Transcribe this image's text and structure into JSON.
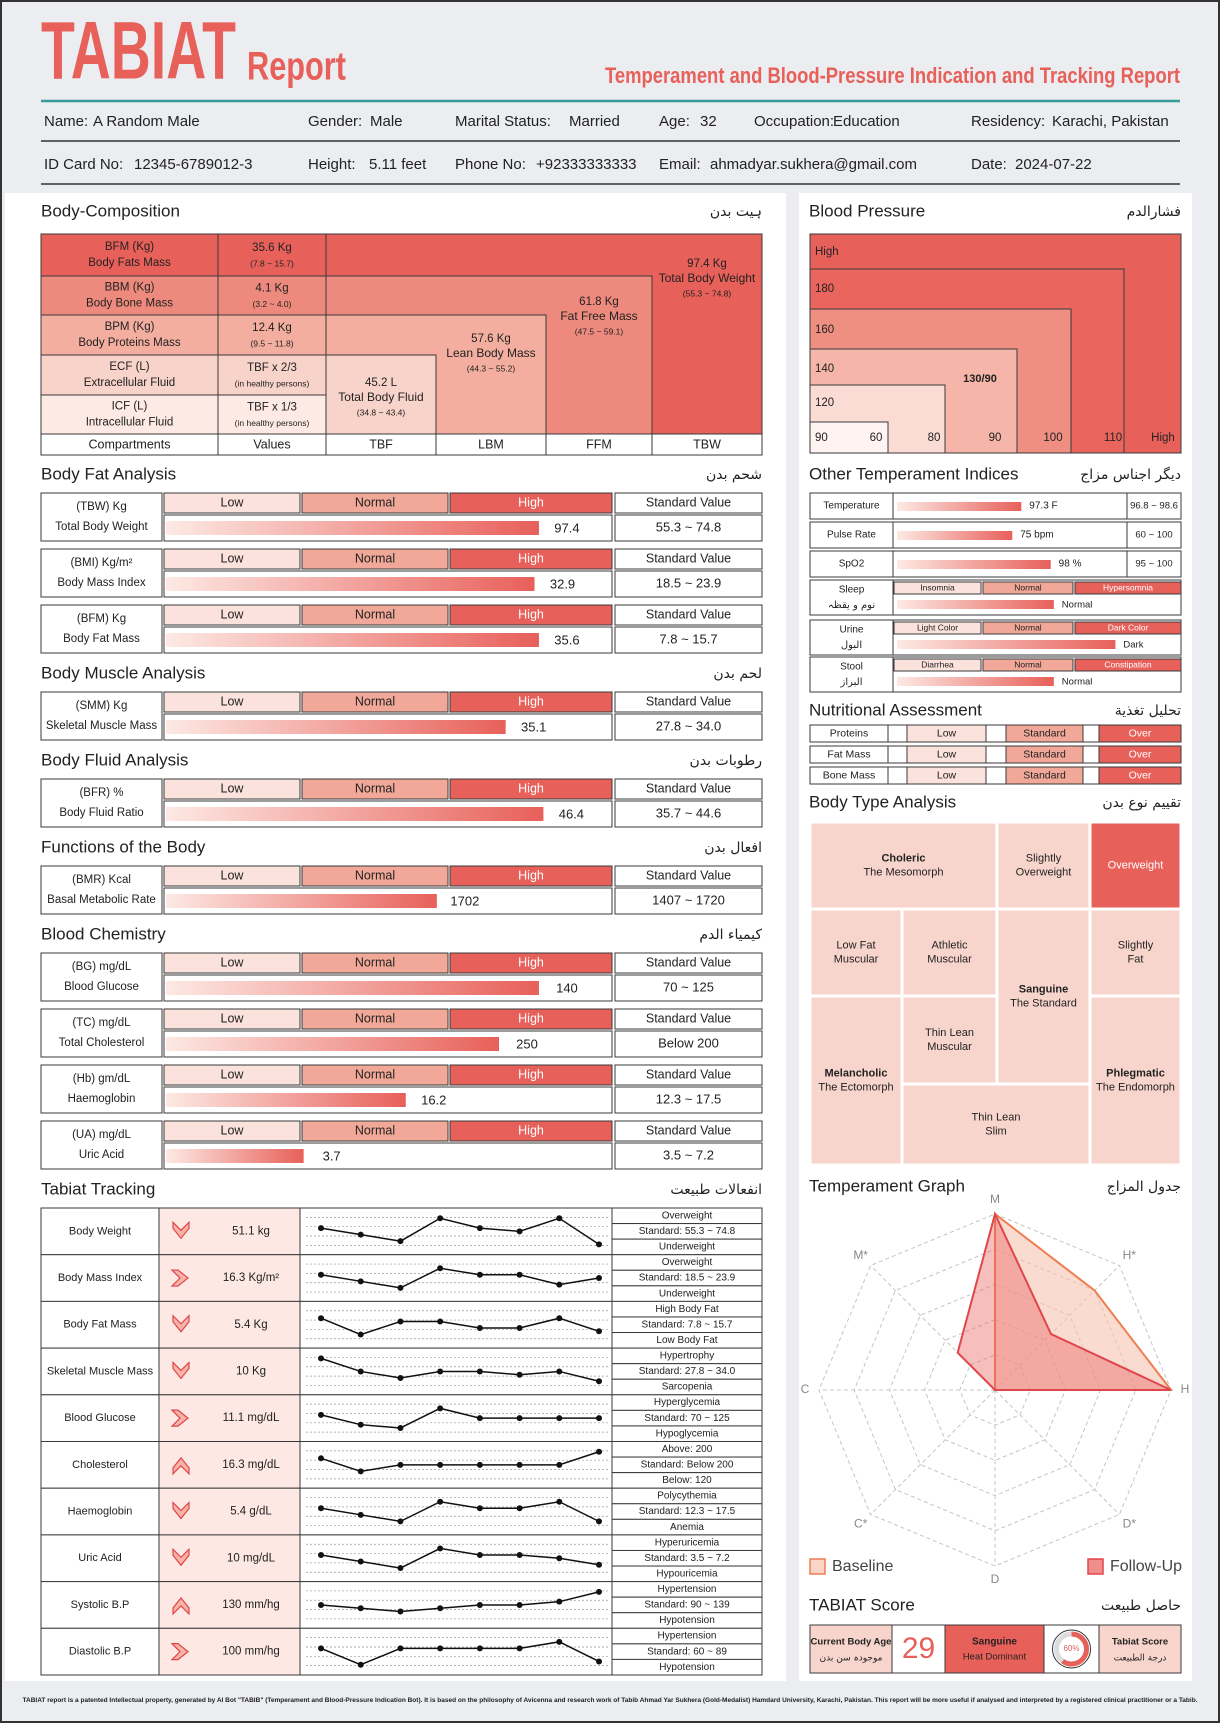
{
  "header": {
    "brand": "TABIAT",
    "report": "Report",
    "subtitle": "Temperament and Blood-Pressure Indication and Tracking Report"
  },
  "patient": [
    [
      {
        "label": "Name:",
        "value": "A Random Male"
      },
      {
        "label": "Gender:",
        "value": "Male"
      },
      {
        "label": "Marital Status:",
        "value": "Married"
      },
      {
        "label": "Age:",
        "value": "32"
      },
      {
        "label": "Occupation:",
        "value": "Education"
      },
      {
        "label": "Residency:",
        "value": "Karachi, Pakistan"
      }
    ],
    [
      {
        "label": "ID Card No:",
        "value": "12345-6789012-3"
      },
      {
        "label": "Height:",
        "value": "5.11 feet"
      },
      {
        "label": "Phone No:",
        "value": "+92333333333"
      },
      {
        "label": "Email:",
        "value": "ahmadyar.sukhera@gmail.com"
      },
      {
        "label": "Date:",
        "value": "2024-07-22"
      }
    ]
  ],
  "body_composition": {
    "title": "Body-Composition",
    "title_urdu": "ہیت بدن",
    "rows": [
      {
        "code": "BFM (Kg)",
        "name": "Body Fats Mass",
        "value": "35.6 Kg",
        "range": "(7.8 ~ 15.7)"
      },
      {
        "code": "BBM (Kg)",
        "name": "Body Bone Mass",
        "value": "4.1 Kg",
        "range": "(3.2 ~ 4.0)"
      },
      {
        "code": "BPM (Kg)",
        "name": "Body Proteins Mass",
        "value": "12.4 Kg",
        "range": "(9.5 ~ 11.8)"
      },
      {
        "code": "ECF (L)",
        "name": "Extracellular Fluid",
        "value": "TBF x 2/3",
        "range": "(in healthy persons)"
      },
      {
        "code": "ICF (L)",
        "name": "Intracellular Fluid",
        "value": "TBF x 1/3",
        "range": "(in healthy persons)"
      }
    ],
    "compartments": [
      {
        "code": "TBF",
        "value": "45.2 L",
        "name": "Total Body Fluid",
        "range": "(34.8 ~ 43.4)"
      },
      {
        "code": "LBM",
        "value": "57.6 Kg",
        "name": "Lean Body Mass",
        "range": "(44.3 ~ 55.2)"
      },
      {
        "code": "FFM",
        "value": "61.8 Kg",
        "name": "Fat Free Mass",
        "range": "(47.5 ~ 59.1)"
      },
      {
        "code": "TBW",
        "value": "97.4 Kg",
        "name": "Total Body Weight",
        "range": "(55.3 ~ 74.8)"
      }
    ],
    "footer": [
      "Compartments",
      "Values"
    ]
  },
  "scale_labels": {
    "low": "Low",
    "normal": "Normal",
    "high": "High",
    "standard": "Standard Value"
  },
  "analyses": [
    {
      "title": "Body Fat Analysis",
      "title_urdu": "شحم بدن",
      "rows": [
        {
          "unit": "(TBW) Kg",
          "name": "Total Body Weight",
          "value": 97.4,
          "standard": "55.3 ~ 74.8"
        },
        {
          "unit": "(BMI) Kg/m²",
          "name": "Body Mass Index",
          "value": 32.9,
          "standard": "18.5 ~ 23.9"
        },
        {
          "unit": "(BFM) Kg",
          "name": "Body Fat Mass",
          "value": 35.6,
          "standard": "7.8 ~ 15.7"
        }
      ]
    },
    {
      "title": "Body Muscle Analysis",
      "title_urdu": "لحم بدن",
      "rows": [
        {
          "unit": "(SMM) Kg",
          "name": "Skeletal Muscle Mass",
          "value": 35.1,
          "standard": "27.8 ~ 34.0"
        }
      ]
    },
    {
      "title": "Body Fluid Analysis",
      "title_urdu": "رطوبات بدن",
      "rows": [
        {
          "unit": "(BFR) %",
          "name": "Body Fluid Ratio",
          "value": 46.4,
          "standard": "35.7 ~ 44.6"
        }
      ]
    },
    {
      "title": "Functions of the Body",
      "title_urdu": "افعال بدن",
      "rows": [
        {
          "unit": "(BMR) Kcal",
          "name": "Basal Metabolic Rate",
          "value": 1702,
          "standard": "1407 ~ 1720"
        }
      ]
    },
    {
      "title": "Blood Chemistry",
      "title_urdu": "كيمياء الدم",
      "rows": [
        {
          "unit": "(BG) mg/dL",
          "name": "Blood Glucose",
          "value": 140,
          "standard": "70 ~ 125"
        },
        {
          "unit": "(TC) mg/dL",
          "name": "Total Cholesterol",
          "value": 250,
          "standard": "Below 200"
        },
        {
          "unit": "(Hb) gm/dL",
          "name": "Haemoglobin",
          "value": 16.2,
          "standard": "12.3 ~ 17.5"
        },
        {
          "unit": "(UA) mg/dL",
          "name": "Uric Acid",
          "value": 3.7,
          "standard": "3.5 ~ 7.2"
        }
      ]
    }
  ],
  "tracking": {
    "title": "Tabiat Tracking",
    "title_urdu": "انفعالات طبیعت",
    "trend_range": [
      0,
      10
    ],
    "rows": [
      {
        "name": "Body Weight",
        "arrow": "down",
        "value": "51.1 kg",
        "trend": [
          6,
          4,
          2,
          9,
          6,
          5,
          9,
          1
        ],
        "status": [
          "Overweight",
          "Standard: 55.3 ~ 74.8",
          "Underweight"
        ]
      },
      {
        "name": "Body Mass Index",
        "arrow": "right",
        "value": "16.3 Kg/m²",
        "trend": [
          6,
          4,
          2,
          8,
          6,
          6,
          3,
          5
        ],
        "status": [
          "Overweight",
          "Standard: 18.5 ~ 23.9",
          "Underweight"
        ]
      },
      {
        "name": "Body Fat Mass",
        "arrow": "down",
        "value": "5.4 Kg",
        "trend": [
          7,
          2,
          6,
          6,
          4,
          4,
          7,
          3
        ],
        "status": [
          "High Body Fat",
          "Standard: 7.8 ~ 15.7",
          "Low Body Fat"
        ]
      },
      {
        "name": "Skeletal Muscle Mass",
        "arrow": "down",
        "value": "10 Kg",
        "trend": [
          9,
          5,
          3,
          5,
          5,
          4,
          5,
          2
        ],
        "status": [
          "Hypertrophy",
          "Standard: 27.8 ~ 34.0",
          "Sarcopenia"
        ]
      },
      {
        "name": "Blood Glucose",
        "arrow": "right",
        "value": "11.1 mg/dL",
        "trend": [
          6,
          3,
          2,
          8,
          5,
          5,
          5,
          5
        ],
        "status": [
          "Hyperglycemia",
          "Standard: 70 ~ 125",
          "Hypoglycemia"
        ]
      },
      {
        "name": "Cholesterol",
        "arrow": "up",
        "value": "16.3 mg/dL",
        "trend": [
          7,
          3,
          5,
          5,
          5,
          5,
          5,
          9
        ],
        "status": [
          "Above: 200",
          "Standard: Below 200",
          "Below: 120"
        ]
      },
      {
        "name": "Haemoglobin",
        "arrow": "down",
        "value": "5.4 g/dL",
        "trend": [
          6,
          4,
          2,
          8,
          6,
          6,
          8,
          2
        ],
        "status": [
          "Polycythemia",
          "Standard: 12.3 ~ 17.5",
          "Anemia"
        ]
      },
      {
        "name": "Uric Acid",
        "arrow": "down",
        "value": "10 mg/dL",
        "trend": [
          6,
          4,
          2,
          8,
          6,
          6,
          5,
          3
        ],
        "status": [
          "Hyperuricemia",
          "Standard: 3.5 ~ 7.2",
          "Hypouricemia"
        ]
      },
      {
        "name": "Systolic B.P",
        "arrow": "up",
        "value": "130 mm/hg",
        "trend": [
          5,
          4,
          3,
          4,
          5,
          5,
          6,
          9
        ],
        "status": [
          "Hypertension",
          "Standard: 90 ~ 139",
          "Hypotension"
        ]
      },
      {
        "name": "Diastolic B.P",
        "arrow": "right",
        "value": "100 mm/hg",
        "trend": [
          6,
          1,
          6,
          6,
          6,
          6,
          8,
          2
        ],
        "status": [
          "Hypertension",
          "Standard: 60 ~ 89",
          "Hypotension"
        ]
      }
    ]
  },
  "blood_pressure": {
    "title": "Blood Pressure",
    "title_urdu": "فشارالدم",
    "y_labels": [
      "High",
      "180",
      "160",
      "140",
      "120",
      "90"
    ],
    "x_labels": [
      "60",
      "80",
      "90",
      "100",
      "110",
      "High"
    ],
    "reading": "130/90"
  },
  "temperament_indices": {
    "title": "Other Temperament Indices",
    "title_urdu": "دیگر اجناس مزاج",
    "vitals": [
      {
        "name": "Temperature",
        "value": "97.3 F",
        "standard": "96.8 ~ 98.6"
      },
      {
        "name": "Pulse Rate",
        "value": "75 bpm",
        "standard": "60 ~ 100"
      },
      {
        "name": "SpO2",
        "value": "98 %",
        "standard": "95 ~ 100"
      }
    ],
    "states": [
      {
        "name": "Sleep",
        "name_urdu": "نوم و یقظہ",
        "levels": [
          "Insomnia",
          "Normal",
          "Hypersomnia"
        ],
        "result": "Normal"
      },
      {
        "name": "Urine",
        "name_urdu": "البول",
        "levels": [
          "Light Color",
          "Normal",
          "Dark Color"
        ],
        "result": "Dark"
      },
      {
        "name": "Stool",
        "name_urdu": "البراز",
        "levels": [
          "Diarrhea",
          "Normal",
          "Constipation"
        ],
        "result": "Normal"
      }
    ]
  },
  "nutrition": {
    "title": "Nutritional Assessment",
    "title_urdu": "تحلیل تغذیة",
    "levels": [
      "Low",
      "Standard",
      "Over"
    ],
    "items": [
      "Proteins",
      "Fat Mass",
      "Bone Mass"
    ]
  },
  "body_type": {
    "title": "Body Type Analysis",
    "title_urdu": "تقییم نوع بدن",
    "cells": [
      {
        "title": "Choleric",
        "lines": [
          "The Mesomorph"
        ],
        "color": "#f8d5cc"
      },
      {
        "lines": [
          "Slightly",
          "Overweight"
        ],
        "color": "#f8d5cc"
      },
      {
        "lines": [
          "Overweight"
        ],
        "color": "#e8605a"
      },
      {
        "lines": [
          "Low Fat",
          "Muscular"
        ],
        "color": "#f8d5cc"
      },
      {
        "lines": [
          "Athletic",
          "Muscular"
        ],
        "color": "#f8d5cc"
      },
      {
        "title": "Sanguine",
        "lines": [
          "The Standard"
        ],
        "color": "#f8d5cc"
      },
      {
        "lines": [
          "Slightly",
          "Fat"
        ],
        "color": "#f8d5cc"
      },
      {
        "lines": [
          "Thin Lean",
          "Muscular"
        ],
        "color": "#f8d5cc"
      },
      {
        "title": "Melancholic",
        "lines": [
          "The Ectomorph"
        ],
        "color": "#f8d5cc"
      },
      {
        "title": "Phlegmatic",
        "lines": [
          "The Endomorph"
        ],
        "color": "#f8d5cc"
      },
      {
        "lines": [
          "Thin Lean",
          "Slim"
        ],
        "color": "#f8d5cc"
      }
    ]
  },
  "temperament_graph": {
    "title": "Temperament Graph",
    "title_urdu": "جدول المزاج",
    "type": "radar",
    "axes": [
      "M",
      "H*",
      "H",
      "D*",
      "D",
      "C*",
      "C",
      "M*"
    ],
    "rlim": [
      0,
      10
    ],
    "rticks": [
      2,
      4,
      6,
      8,
      10
    ],
    "series": [
      {
        "name": "Baseline",
        "color": "#ef7d52",
        "values": [
          10,
          8,
          10,
          0,
          0,
          0,
          0,
          0
        ]
      },
      {
        "name": "Follow-Up",
        "color": "#e0454b",
        "values": [
          10,
          4.5,
          10,
          0,
          0,
          0,
          0,
          3
        ]
      }
    ]
  },
  "score": {
    "title": "TABIAT Score",
    "title_urdu": "حاصل طبیعت",
    "age_label": "Current Body Age",
    "age_label_urdu": "موجودہ سن بدن",
    "age": 29,
    "temperament": "Sanguine",
    "temperament_note": "Heat Dominant",
    "percent": {
      "value": 60,
      "label": "60%"
    },
    "score_label": "Tabiat Score",
    "score_label_urdu": "درجة الطبیعت"
  },
  "footer": "TABIAT report is a patented Intellectual property, generated by AI Bot \"TABIB\" (Temperament and Blood-Pressure Indication Bot). It is based on the philosophy of Avicenna and research work of Tabib Ahmad Yar Sukhera (Gold-Medalist) Hamdard University, Karachi, Pakistan. This report will be more useful if analysed and interpreted by a registered clinical practitioner or a Tabib."
}
